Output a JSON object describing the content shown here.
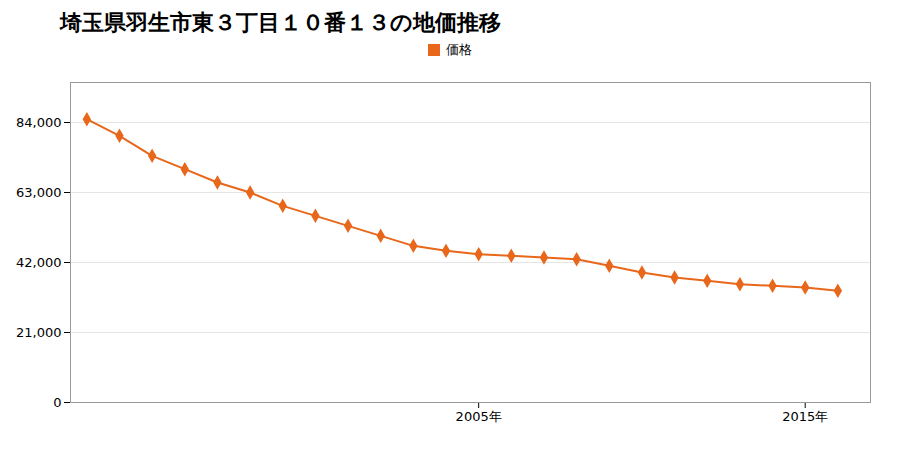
{
  "chart_data": {
    "type": "line",
    "title": "埼玉県羽生市東３丁目１０番１３の地価推移",
    "x": [
      1993,
      1994,
      1995,
      1996,
      1997,
      1998,
      1999,
      2000,
      2001,
      2002,
      2003,
      2004,
      2005,
      2006,
      2007,
      2008,
      2009,
      2010,
      2011,
      2012,
      2013,
      2014,
      2015,
      2016
    ],
    "series": [
      {
        "name": "価格",
        "color": "#e8671b",
        "marker": "diamond",
        "values": [
          85000,
          80000,
          74000,
          70000,
          66000,
          63000,
          59000,
          56000,
          53000,
          50000,
          47000,
          45500,
          44500,
          44000,
          43500,
          43000,
          41000,
          39000,
          37500,
          36500,
          35500,
          35000,
          34500,
          33500
        ]
      }
    ],
    "xlim": [
      1992.5,
      2017
    ],
    "xticks": [
      {
        "value": 2005,
        "label": "2005年"
      },
      {
        "value": 2015,
        "label": "2015年"
      }
    ],
    "ylim": [
      0,
      96000
    ],
    "yticks": [
      0,
      {
        "value": 21000,
        "label": "21,000"
      },
      {
        "value": 42000,
        "label": "42,000"
      },
      {
        "value": 63000,
        "label": "63,000"
      },
      {
        "value": 84000,
        "label": "84,000"
      }
    ],
    "grid": "y",
    "legend": "top"
  }
}
